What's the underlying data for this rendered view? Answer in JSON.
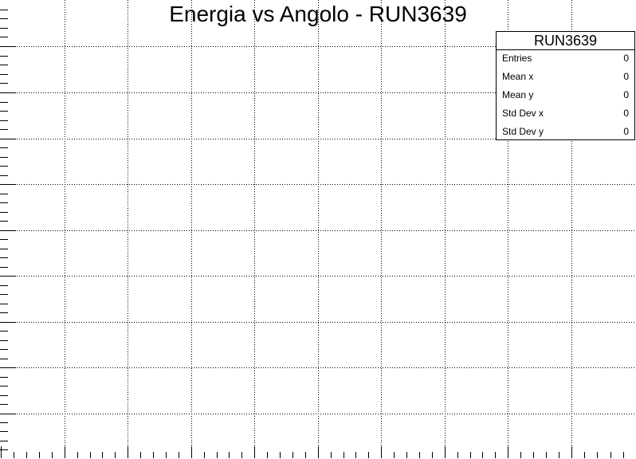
{
  "chart_data": {
    "type": "heatmap",
    "title": "Energia vs Angolo - RUN3639",
    "xlabel": "",
    "ylabel": "",
    "grid": true,
    "values": [],
    "stats_box": {
      "placement": "top-right",
      "name": "RUN3639",
      "rows": [
        {
          "label": "Entries",
          "value": "0"
        },
        {
          "label": "Mean x",
          "value": "0"
        },
        {
          "label": "Mean y",
          "value": "0"
        },
        {
          "label": "Std Dev x",
          "value": "0"
        },
        {
          "label": "Std Dev y",
          "value": "0"
        }
      ]
    }
  },
  "colors": {
    "frame": "#000000",
    "grid": "#000000",
    "background": "#ffffff"
  }
}
